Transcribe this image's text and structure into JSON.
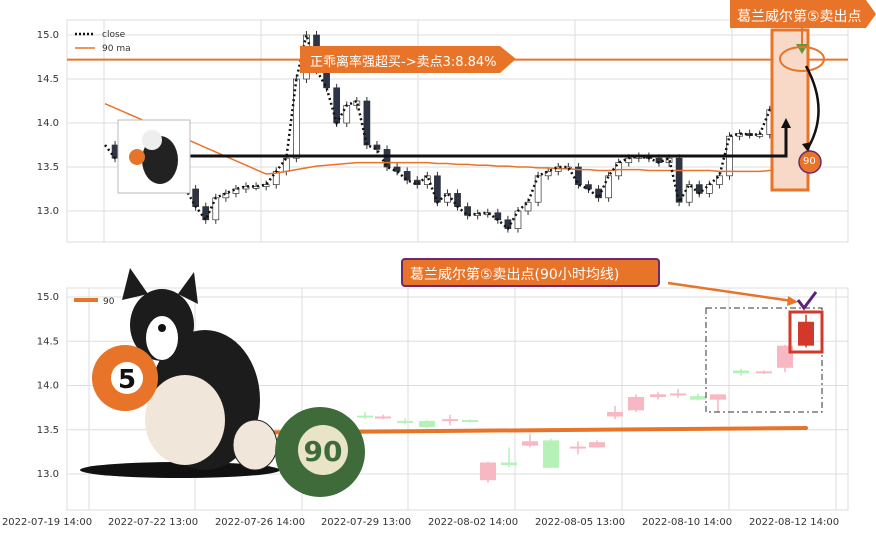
{
  "chart_data": [
    {
      "type": "line",
      "legend": [
        "close",
        "90 ma"
      ],
      "legend_position": "top-left",
      "yticks": [
        "15.0",
        "14.5",
        "14.0",
        "13.5",
        "13.0"
      ],
      "ylim": [
        12.65,
        15.2
      ],
      "grid": true,
      "close": [
        13.75,
        13.6,
        13.55,
        13.5,
        13.45,
        13.5,
        13.48,
        13.3,
        13.25,
        13.05,
        12.9,
        13.15,
        13.2,
        13.25,
        13.28,
        13.28,
        13.3,
        13.45,
        13.6,
        14.5,
        15.0,
        14.6,
        14.4,
        14.0,
        14.2,
        14.25,
        13.75,
        13.7,
        13.5,
        13.45,
        13.35,
        13.3,
        13.4,
        13.1,
        13.2,
        13.05,
        12.95,
        12.97,
        12.98,
        12.9,
        12.8,
        13.0,
        13.1,
        13.4,
        13.45,
        13.5,
        13.5,
        13.3,
        13.25,
        13.15,
        13.4,
        13.55,
        13.6,
        13.62,
        13.6,
        13.55,
        13.6,
        13.1,
        13.3,
        13.2,
        13.3,
        13.4,
        13.85,
        13.88,
        13.87,
        13.87,
        14.15,
        14.15,
        14.4,
        14.72
      ],
      "ma90": [
        14.22,
        14.17,
        14.12,
        14.07,
        14.02,
        13.97,
        13.92,
        13.87,
        13.82,
        13.77,
        13.72,
        13.67,
        13.62,
        13.57,
        13.52,
        13.47,
        13.42,
        13.43,
        13.45,
        13.47,
        13.49,
        13.51,
        13.52,
        13.53,
        13.54,
        13.55,
        13.55,
        13.55,
        13.55,
        13.55,
        13.55,
        13.55,
        13.55,
        13.54,
        13.54,
        13.53,
        13.53,
        13.52,
        13.52,
        13.51,
        13.51,
        13.5,
        13.5,
        13.49,
        13.49,
        13.48,
        13.48,
        13.47,
        13.47,
        13.46,
        13.46,
        13.47,
        13.47,
        13.47,
        13.46,
        13.46,
        13.46,
        13.46,
        13.46,
        13.46,
        13.46,
        13.45,
        13.45,
        13.45,
        13.45,
        13.45,
        13.46,
        13.47,
        13.49,
        13.51
      ],
      "level_line": 14.72,
      "annotations": {
        "arrow_text": "正乖离率强超买->卖点3:8.84%",
        "sell_label": "葛兰威尔第⑤卖出点",
        "ma_badge": "90"
      }
    },
    {
      "type": "bar",
      "subtype": "candlestick",
      "legend": [
        "90"
      ],
      "legend_position": "top-left",
      "yticks": [
        "15.0",
        "14.5",
        "14.0",
        "13.5",
        "13.0"
      ],
      "ylim": [
        12.6,
        15.1
      ],
      "grid": true,
      "xticks": [
        "2022-07-19 14:00",
        "2022-07-22 13:00",
        "2022-07-26 14:00",
        "2022-07-29 13:00",
        "2022-08-02 14:00",
        "2022-08-05 13:00",
        "2022-08-10 14:00",
        "2022-08-12 14:00"
      ],
      "candles": [
        {
          "o": 13.65,
          "c": 13.66,
          "h": 13.7,
          "l": 13.62,
          "up": false
        },
        {
          "o": 13.64,
          "c": 13.65,
          "h": 13.67,
          "l": 13.62,
          "up": true
        },
        {
          "o": 13.6,
          "c": 13.59,
          "h": 13.63,
          "l": 13.56,
          "up": false
        },
        {
          "o": 13.6,
          "c": 13.53,
          "h": 13.61,
          "l": 13.52,
          "up": false
        },
        {
          "o": 13.61,
          "c": 13.62,
          "h": 13.67,
          "l": 13.55,
          "up": true
        },
        {
          "o": 13.61,
          "c": 13.6,
          "h": 13.62,
          "l": 13.58,
          "up": false
        },
        {
          "o": 12.93,
          "c": 13.13,
          "h": 13.14,
          "l": 12.9,
          "up": true
        },
        {
          "o": 13.13,
          "c": 13.1,
          "h": 13.3,
          "l": 13.08,
          "up": false
        },
        {
          "o": 13.32,
          "c": 13.37,
          "h": 13.45,
          "l": 13.3,
          "up": true
        },
        {
          "o": 13.38,
          "c": 13.07,
          "h": 13.4,
          "l": 13.07,
          "up": false
        },
        {
          "o": 13.3,
          "c": 13.31,
          "h": 13.37,
          "l": 13.22,
          "up": true
        },
        {
          "o": 13.3,
          "c": 13.36,
          "h": 13.38,
          "l": 13.3,
          "up": true
        },
        {
          "o": 13.65,
          "c": 13.7,
          "h": 13.77,
          "l": 13.62,
          "up": true
        },
        {
          "o": 13.72,
          "c": 13.87,
          "h": 13.9,
          "l": 13.7,
          "up": true
        },
        {
          "o": 13.87,
          "c": 13.9,
          "h": 13.93,
          "l": 13.84,
          "up": true
        },
        {
          "o": 13.9,
          "c": 13.91,
          "h": 13.96,
          "l": 13.86,
          "up": true
        },
        {
          "o": 13.88,
          "c": 13.84,
          "h": 13.91,
          "l": 13.83,
          "up": false
        },
        {
          "o": 13.84,
          "c": 13.9,
          "h": 13.9,
          "l": 13.7,
          "up": true
        },
        {
          "o": 14.17,
          "c": 14.14,
          "h": 14.19,
          "l": 14.11,
          "up": false
        },
        {
          "o": 14.14,
          "c": 14.16,
          "h": 14.17,
          "l": 14.13,
          "up": true
        },
        {
          "o": 14.2,
          "c": 14.45,
          "h": 14.46,
          "l": 14.15,
          "up": true
        },
        {
          "o": 14.45,
          "c": 14.72,
          "h": 14.8,
          "l": 14.43,
          "up": true,
          "highlight": true
        }
      ],
      "ma90_start": 13.47,
      "ma90_end": 13.52,
      "annotations": {
        "label": "葛兰威尔第⑤卖出点(90小时均线)"
      }
    }
  ],
  "colors": {
    "orange": "#e8742a",
    "up_pastel": "#f7b7c3",
    "down_pastel": "#b6f2b8",
    "highlight": "#d3382a",
    "dark": "#2c3446",
    "box_border": "#6b2a6e"
  },
  "images": {
    "dog_ball_number": "5",
    "green_ball_number": "90"
  }
}
